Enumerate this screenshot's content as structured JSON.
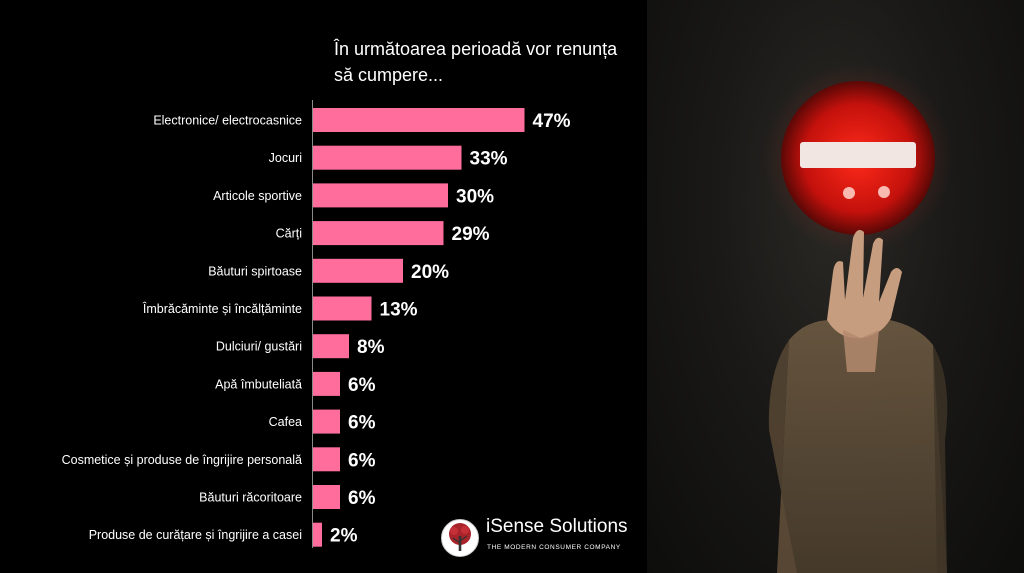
{
  "chart_data": {
    "type": "bar",
    "orientation": "horizontal",
    "title": "În următoarea perioadă vor renunța să cumpere...",
    "categories": [
      "Electronice/ electrocasnice",
      "Jocuri",
      "Articole sportive",
      "Cărți",
      "Băuturi spirtoase",
      "Îmbrăcăminte și încălțăminte",
      "Dulciuri/ gustări",
      "Apă îmbuteliată",
      "Cafea",
      "Cosmetice și produse de îngrijire personală",
      "Băuturi răcoritoare",
      "Produse de curățare și îngrijire a casei"
    ],
    "values": [
      47,
      33,
      30,
      29,
      20,
      13,
      8,
      6,
      6,
      6,
      6,
      2
    ],
    "value_labels": [
      "47%",
      "33%",
      "30%",
      "29%",
      "20%",
      "13%",
      "8%",
      "6%",
      "6%",
      "6%",
      "6%",
      "2%"
    ],
    "unit": "%",
    "bar_color": "#ff6d9d",
    "text_color": "#ffffff",
    "background_color": "#000000",
    "grid": false,
    "legend": "none"
  },
  "branding": {
    "name": "iSense Solutions",
    "tagline": "THE MODERN CONSUMER COMPANY"
  }
}
